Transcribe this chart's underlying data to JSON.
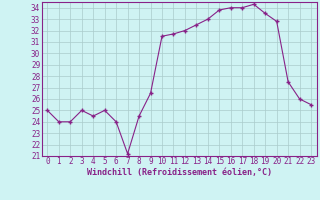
{
  "x": [
    0,
    1,
    2,
    3,
    4,
    5,
    6,
    7,
    8,
    9,
    10,
    11,
    12,
    13,
    14,
    15,
    16,
    17,
    18,
    19,
    20,
    21,
    22,
    23
  ],
  "y": [
    25.0,
    24.0,
    24.0,
    25.0,
    24.5,
    25.0,
    24.0,
    21.2,
    24.5,
    26.5,
    31.5,
    31.7,
    32.0,
    32.5,
    33.0,
    33.8,
    34.0,
    34.0,
    34.3,
    33.5,
    32.8,
    27.5,
    26.0,
    25.5
  ],
  "line_color": "#882288",
  "marker": "+",
  "marker_size": 3,
  "marker_lw": 1.0,
  "line_width": 0.8,
  "xlim": [
    -0.5,
    23.5
  ],
  "ylim": [
    21,
    34.5
  ],
  "yticks": [
    21,
    22,
    23,
    24,
    25,
    26,
    27,
    28,
    29,
    30,
    31,
    32,
    33,
    34
  ],
  "xticks": [
    0,
    1,
    2,
    3,
    4,
    5,
    6,
    7,
    8,
    9,
    10,
    11,
    12,
    13,
    14,
    15,
    16,
    17,
    18,
    19,
    20,
    21,
    22,
    23
  ],
  "xlabel": "Windchill (Refroidissement éolien,°C)",
  "background_color": "#cff3f3",
  "grid_color": "#aacccc",
  "tick_fontsize": 5.5,
  "xlabel_fontsize": 6.0
}
